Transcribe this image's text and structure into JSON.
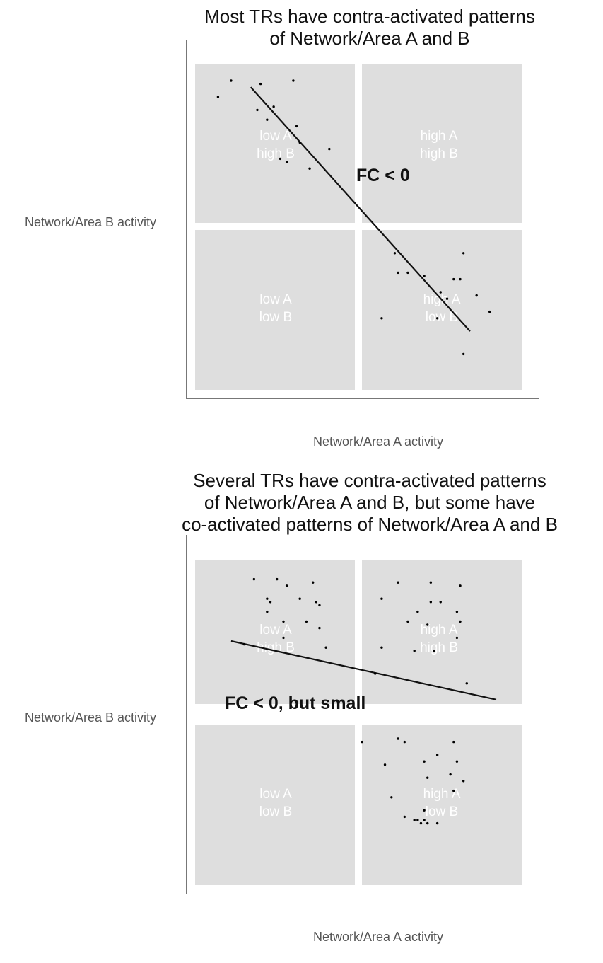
{
  "panels": [
    {
      "title_line1": "Most TRs have contra-activated patterns",
      "title_line2": "of Network/Area A and B",
      "title_line3": "",
      "ylabel": "Network/Area B activity",
      "xlabel": "Network/Area A activity",
      "fc_label": "FC < 0",
      "quadrants": {
        "top_left": [
          "low A",
          "high B"
        ],
        "top_right": [
          "high A",
          "high B"
        ],
        "bottom_left": [
          "low A",
          "low B"
        ],
        "bottom_right": [
          "high A",
          "low B"
        ]
      },
      "points": [
        [
          0.07,
          0.9
        ],
        [
          0.11,
          0.95
        ],
        [
          0.2,
          0.94
        ],
        [
          0.19,
          0.86
        ],
        [
          0.24,
          0.87
        ],
        [
          0.3,
          0.95
        ],
        [
          0.22,
          0.83
        ],
        [
          0.31,
          0.81
        ],
        [
          0.32,
          0.76
        ],
        [
          0.26,
          0.71
        ],
        [
          0.28,
          0.7
        ],
        [
          0.35,
          0.68
        ],
        [
          0.41,
          0.74
        ],
        [
          0.61,
          0.42
        ],
        [
          0.62,
          0.36
        ],
        [
          0.65,
          0.36
        ],
        [
          0.7,
          0.35
        ],
        [
          0.75,
          0.3
        ],
        [
          0.79,
          0.34
        ],
        [
          0.82,
          0.42
        ],
        [
          0.81,
          0.34
        ],
        [
          0.77,
          0.28
        ],
        [
          0.86,
          0.29
        ],
        [
          0.74,
          0.22
        ],
        [
          0.57,
          0.22
        ],
        [
          0.9,
          0.24
        ],
        [
          0.82,
          0.11
        ]
      ],
      "fit_line": [
        [
          0.17,
          0.93
        ],
        [
          0.84,
          0.18
        ]
      ]
    },
    {
      "title_line1": "Several TRs have contra-activated patterns",
      "title_line2": "of Network/Area A and B, but some have",
      "title_line3": "co-activated patterns of Network/Area A and B",
      "ylabel": "Network/Area B activity",
      "xlabel": "Network/Area A activity",
      "fc_label": "FC < 0, but small",
      "quadrants": {
        "top_left": [
          "low A",
          "high B"
        ],
        "top_right": [
          "high A",
          "high B"
        ],
        "bottom_left": [
          "low A",
          "low B"
        ],
        "bottom_right": [
          "high A",
          "low B"
        ]
      },
      "points": [
        [
          0.18,
          0.94
        ],
        [
          0.25,
          0.94
        ],
        [
          0.28,
          0.92
        ],
        [
          0.36,
          0.93
        ],
        [
          0.22,
          0.88
        ],
        [
          0.23,
          0.87
        ],
        [
          0.32,
          0.88
        ],
        [
          0.37,
          0.87
        ],
        [
          0.38,
          0.86
        ],
        [
          0.22,
          0.84
        ],
        [
          0.27,
          0.81
        ],
        [
          0.34,
          0.81
        ],
        [
          0.38,
          0.79
        ],
        [
          0.27,
          0.76
        ],
        [
          0.15,
          0.74
        ],
        [
          0.4,
          0.73
        ],
        [
          0.62,
          0.93
        ],
        [
          0.72,
          0.93
        ],
        [
          0.81,
          0.92
        ],
        [
          0.57,
          0.88
        ],
        [
          0.72,
          0.87
        ],
        [
          0.75,
          0.87
        ],
        [
          0.68,
          0.84
        ],
        [
          0.8,
          0.84
        ],
        [
          0.65,
          0.81
        ],
        [
          0.71,
          0.8
        ],
        [
          0.81,
          0.81
        ],
        [
          0.8,
          0.76
        ],
        [
          0.67,
          0.72
        ],
        [
          0.73,
          0.72
        ],
        [
          0.55,
          0.65
        ],
        [
          0.57,
          0.73
        ],
        [
          0.83,
          0.62
        ],
        [
          0.51,
          0.44
        ],
        [
          0.62,
          0.45
        ],
        [
          0.64,
          0.44
        ],
        [
          0.79,
          0.44
        ],
        [
          0.7,
          0.38
        ],
        [
          0.74,
          0.4
        ],
        [
          0.8,
          0.38
        ],
        [
          0.58,
          0.37
        ],
        [
          0.71,
          0.33
        ],
        [
          0.78,
          0.34
        ],
        [
          0.79,
          0.29
        ],
        [
          0.82,
          0.32
        ],
        [
          0.6,
          0.27
        ],
        [
          0.7,
          0.23
        ],
        [
          0.64,
          0.21
        ],
        [
          0.68,
          0.2
        ],
        [
          0.69,
          0.19
        ],
        [
          0.7,
          0.2
        ],
        [
          0.71,
          0.19
        ],
        [
          0.74,
          0.19
        ],
        [
          0.67,
          0.2
        ]
      ],
      "fit_line": [
        [
          0.11,
          0.75
        ],
        [
          0.92,
          0.57
        ]
      ]
    }
  ]
}
